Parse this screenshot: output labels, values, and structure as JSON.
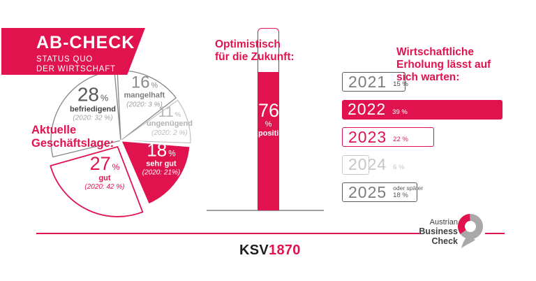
{
  "colors": {
    "accent": "#e0134f",
    "dark": "#3f3f42",
    "gray": "#85858a",
    "light_gray": "#c2c2c4"
  },
  "header": {
    "title": "AB-CHECK",
    "subtitle_line1": "STATUS QUO",
    "subtitle_line2": "DER WIRTSCHAFT"
  },
  "pie": {
    "title_line1": "Aktuelle",
    "title_line2": "Geschäftslage:",
    "slices": {
      "befriedigend": {
        "value": "28",
        "unit": "%",
        "name": "befriedigend",
        "prev": "(2020: 32 %)"
      },
      "mangelhaft": {
        "value": "16",
        "unit": "%",
        "name": "mangelhaft",
        "prev": "(2020: 3 %)"
      },
      "ungenuegend": {
        "value": "11",
        "unit": "%",
        "name": "ungenügend",
        "prev": "(2020: 2 %)"
      },
      "sehr_gut": {
        "value": "18",
        "unit": "%",
        "name": "sehr gut",
        "prev": "(2020: 21%)"
      },
      "gut": {
        "value": "27",
        "unit": "%",
        "name": "gut",
        "prev": "(2020: 42 %)"
      }
    }
  },
  "future": {
    "title_line1": "Optimistisch",
    "title_line2": "für die Zukunft:",
    "value": "76",
    "unit": "%",
    "label": "positiv"
  },
  "recovery": {
    "title_line1": "Wirtschaftliche",
    "title_line2": "Erholung lässt auf",
    "title_line3": "sich warten:",
    "items": [
      {
        "year": "2021",
        "pct": "15 %",
        "style": "outline-dark"
      },
      {
        "year": "2022",
        "pct": "39 %",
        "style": "solid"
      },
      {
        "year": "2023",
        "pct": "22 %",
        "style": "outline-accent"
      },
      {
        "year": "2024",
        "pct": "6 %",
        "style": "outline-light"
      },
      {
        "year": "2025",
        "pct": "18 %",
        "extra": "oder später",
        "style": "outline-dark"
      }
    ]
  },
  "footer": {
    "brand_black": "KSV",
    "brand_accent": "1870",
    "abc_line1": "Austrian",
    "abc_line2": "Business",
    "abc_line3": "Check"
  },
  "chart_data": [
    {
      "type": "pie",
      "title": "Aktuelle Geschäftslage:",
      "unit": "%",
      "start_angle_deg": -4,
      "clockwise": true,
      "slices": [
        {
          "label": "mangelhaft",
          "value": 16,
          "value_2020": 3,
          "style": "outline-gray"
        },
        {
          "label": "ungenügend",
          "value": 11,
          "value_2020": 2,
          "style": "outline-light"
        },
        {
          "label": "sehr gut",
          "value": 18,
          "value_2020": 21,
          "style": "filled"
        },
        {
          "label": "gut",
          "value": 27,
          "value_2020": 42,
          "style": "outline-accent",
          "exploded": true
        },
        {
          "label": "befriedigend",
          "value": 28,
          "value_2020": 32,
          "style": "outline-gray"
        }
      ]
    },
    {
      "type": "bar",
      "title": "Optimistisch für die Zukunft:",
      "orientation": "vertical",
      "categories": [
        "positiv"
      ],
      "values": [
        76
      ],
      "unit": "%",
      "ylim": [
        0,
        100
      ]
    },
    {
      "type": "bar",
      "title": "Wirtschaftliche Erholung lässt auf sich warten:",
      "orientation": "horizontal",
      "categories": [
        "2021",
        "2022",
        "2023",
        "2024",
        "2025 oder später"
      ],
      "values": [
        15,
        39,
        22,
        6,
        18
      ],
      "unit": "%",
      "highlighted": "2022"
    }
  ]
}
